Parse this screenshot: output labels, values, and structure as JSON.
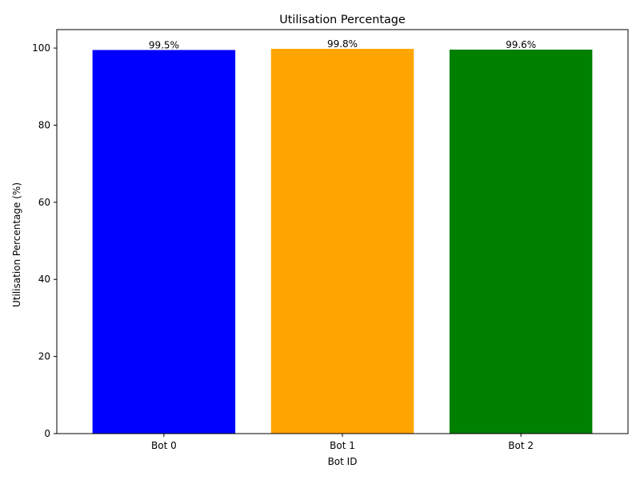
{
  "chart_data": {
    "type": "bar",
    "title": "Utilisation Percentage",
    "xlabel": "Bot ID",
    "ylabel": "Utilisation Percentage (%)",
    "categories": [
      "Bot 0",
      "Bot 1",
      "Bot 2"
    ],
    "values": [
      99.5,
      99.8,
      99.6
    ],
    "data_labels": [
      "99.5%",
      "99.8%",
      "99.6%"
    ],
    "colors": [
      "#0000ff",
      "#ffa500",
      "#008000"
    ],
    "ylim": [
      0,
      104.79
    ],
    "yticks": [
      0,
      20,
      40,
      60,
      80,
      100
    ],
    "grid": false,
    "legend": "none"
  }
}
